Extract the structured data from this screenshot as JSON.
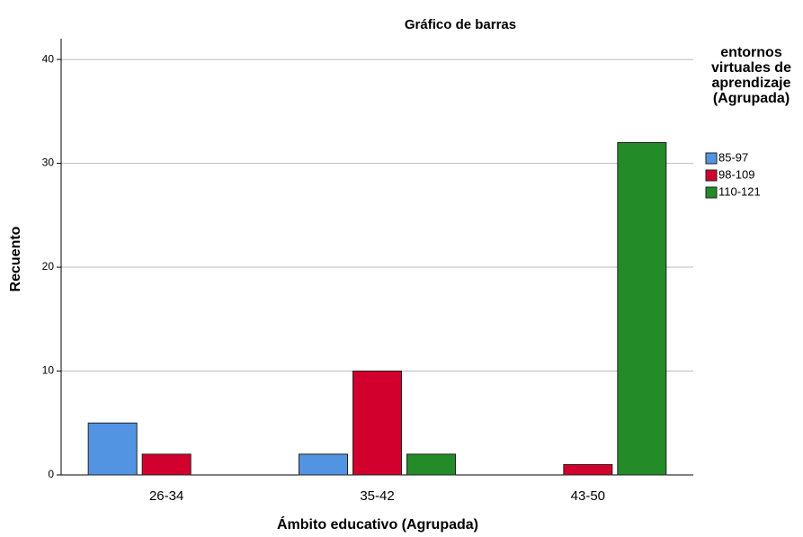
{
  "chart_data": {
    "type": "bar",
    "title": "Gráfico de barras",
    "x_label": "Ámbito educativo (Agrupada)",
    "y_label": "Recuento",
    "legend_title": "entornos virtuales de aprendizaje (Agrupada)",
    "categories": [
      "26-34",
      "35-42",
      "43-50"
    ],
    "series": [
      {
        "name": "85-97",
        "color": "#5294e2",
        "values": [
          5,
          2,
          null
        ]
      },
      {
        "name": "98-109",
        "color": "#d2002d",
        "values": [
          2,
          10,
          1
        ]
      },
      {
        "name": "110-121",
        "color": "#238b27",
        "values": [
          null,
          2,
          32
        ]
      }
    ],
    "ylim": [
      0,
      42
    ],
    "yticks": [
      0,
      10,
      20,
      30,
      40
    ],
    "grid": true,
    "legend": "right"
  }
}
